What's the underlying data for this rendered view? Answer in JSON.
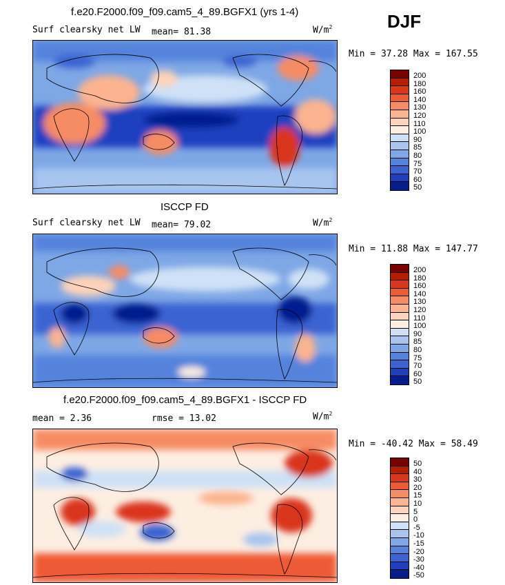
{
  "season": "DJF",
  "units_main": "W/m",
  "units_sup": "2",
  "panels": [
    {
      "title": "f.e20.F2000.f09_f09.cam5_4_89.BGFX1 (yrs 1-4)",
      "variable": "Surf clearsky net LW",
      "stat_left": "",
      "stat_mid": "mean=  81.38",
      "minmax": "Min =  37.28 Max = 167.55",
      "levels": [
        "200",
        "180",
        "160",
        "140",
        "130",
        "120",
        "110",
        "100",
        "90",
        "85",
        "80",
        "75",
        "70",
        "60",
        "50"
      ],
      "colors": [
        "#7a0000",
        "#b51d00",
        "#d9361a",
        "#ee5a34",
        "#f68c64",
        "#fbb48f",
        "#fdd3b9",
        "#fdeee2",
        "#cfe1f6",
        "#a7c5ef",
        "#7ea7e6",
        "#5583dc",
        "#3a63d1",
        "#1e3fc0",
        "#061d8e"
      ],
      "mean_value": 81.38,
      "min_value": 37.28,
      "max_value": 167.55
    },
    {
      "title": "ISCCP FD",
      "variable": "Surf clearsky net LW",
      "stat_left": "",
      "stat_mid": "mean=  79.02",
      "minmax": "Min =  11.88 Max = 147.77",
      "levels": [
        "200",
        "180",
        "160",
        "140",
        "130",
        "120",
        "110",
        "100",
        "90",
        "85",
        "80",
        "75",
        "70",
        "60",
        "50"
      ],
      "colors": [
        "#7a0000",
        "#b51d00",
        "#d9361a",
        "#ee5a34",
        "#f68c64",
        "#fbb48f",
        "#fdd3b9",
        "#fdeee2",
        "#cfe1f6",
        "#a7c5ef",
        "#7ea7e6",
        "#5583dc",
        "#3a63d1",
        "#1e3fc0",
        "#061d8e"
      ],
      "mean_value": 79.02,
      "min_value": 11.88,
      "max_value": 147.77
    },
    {
      "title": "f.e20.F2000.f09_f09.cam5_4_89.BGFX1 - ISCCP FD",
      "variable": "",
      "stat_left": "mean =   2.36",
      "stat_mid": "rmse =  13.02",
      "minmax": "Min = -40.42 Max =  58.49",
      "levels": [
        "50",
        "40",
        "30",
        "20",
        "15",
        "10",
        "5",
        "0",
        "-5",
        "-10",
        "-15",
        "-20",
        "-30",
        "-40",
        "-50"
      ],
      "colors": [
        "#7a0000",
        "#b51d00",
        "#d9361a",
        "#ee5a34",
        "#f68c64",
        "#fbb48f",
        "#fdd3b9",
        "#fdeee2",
        "#cfe1f6",
        "#a7c5ef",
        "#7ea7e6",
        "#5583dc",
        "#3a63d1",
        "#1e3fc0",
        "#061d8e"
      ],
      "mean_value": 2.36,
      "rmse_value": 13.02,
      "min_value": -40.42,
      "max_value": 58.49
    }
  ]
}
